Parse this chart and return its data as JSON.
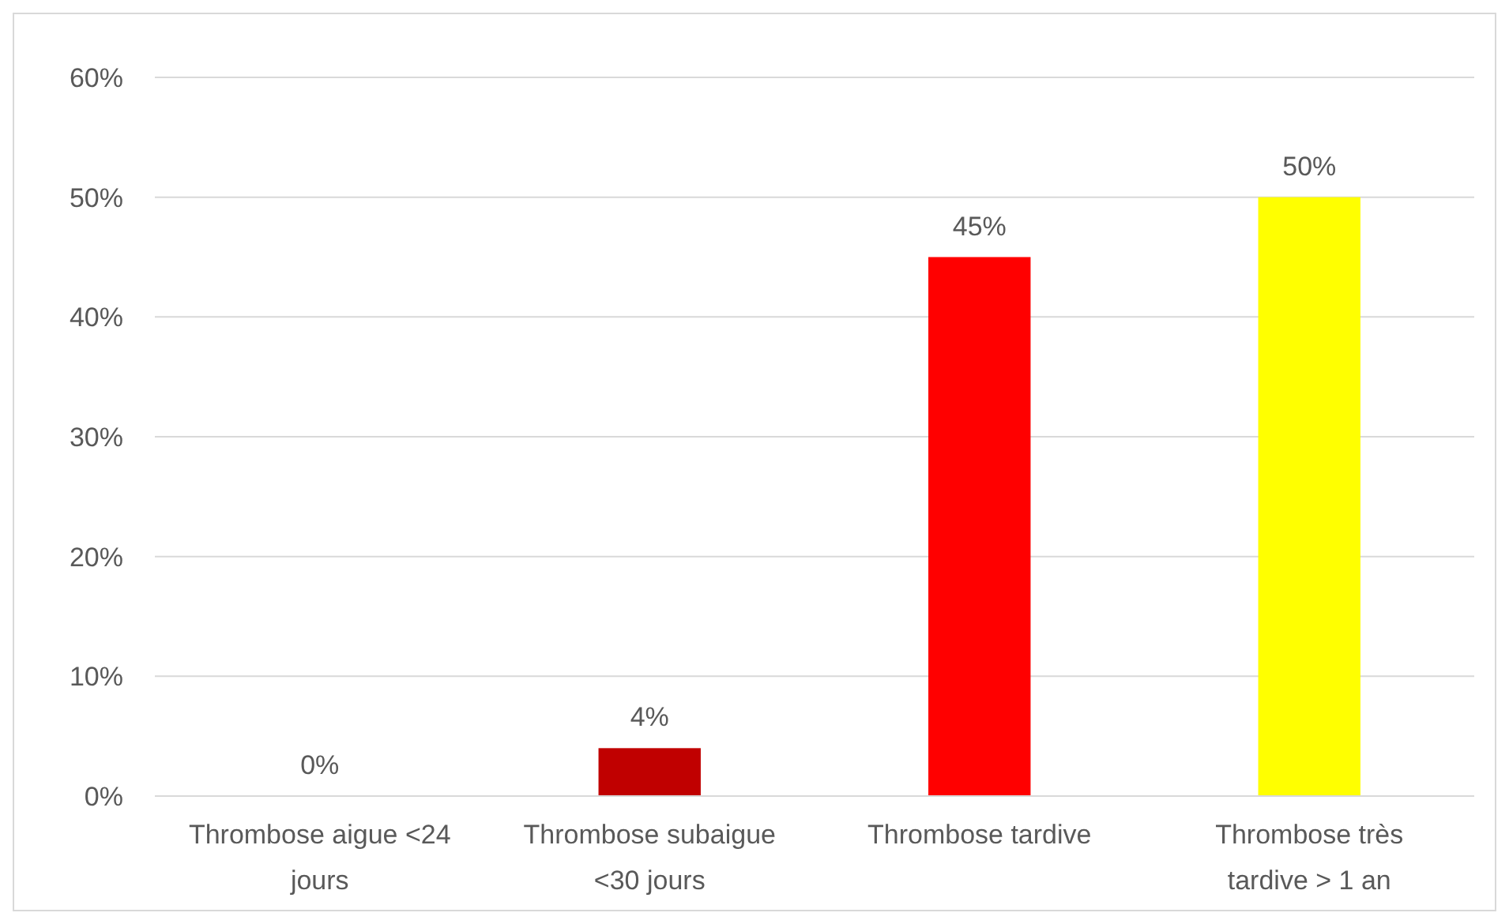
{
  "chart_data": {
    "type": "bar",
    "categories": [
      "Thrombose aigue <24 jours",
      "Thrombose subaigue <30 jours",
      "Thrombose tardive",
      "Thrombose très tardive > 1 an"
    ],
    "values": [
      0,
      4,
      45,
      50
    ],
    "colors": [
      "#c00000",
      "#c00000",
      "#ff0000",
      "#ffff00"
    ],
    "value_labels": [
      "0%",
      "4%",
      "45%",
      "50%"
    ],
    "ylim": [
      0,
      60
    ],
    "yticks": [
      {
        "value": 0,
        "label": "0%"
      },
      {
        "value": 10,
        "label": "10%"
      },
      {
        "value": 20,
        "label": "20%"
      },
      {
        "value": 30,
        "label": "30%"
      },
      {
        "value": 40,
        "label": "40%"
      },
      {
        "value": 50,
        "label": "50%"
      },
      {
        "value": 60,
        "label": "60%"
      }
    ],
    "grid": "y"
  }
}
